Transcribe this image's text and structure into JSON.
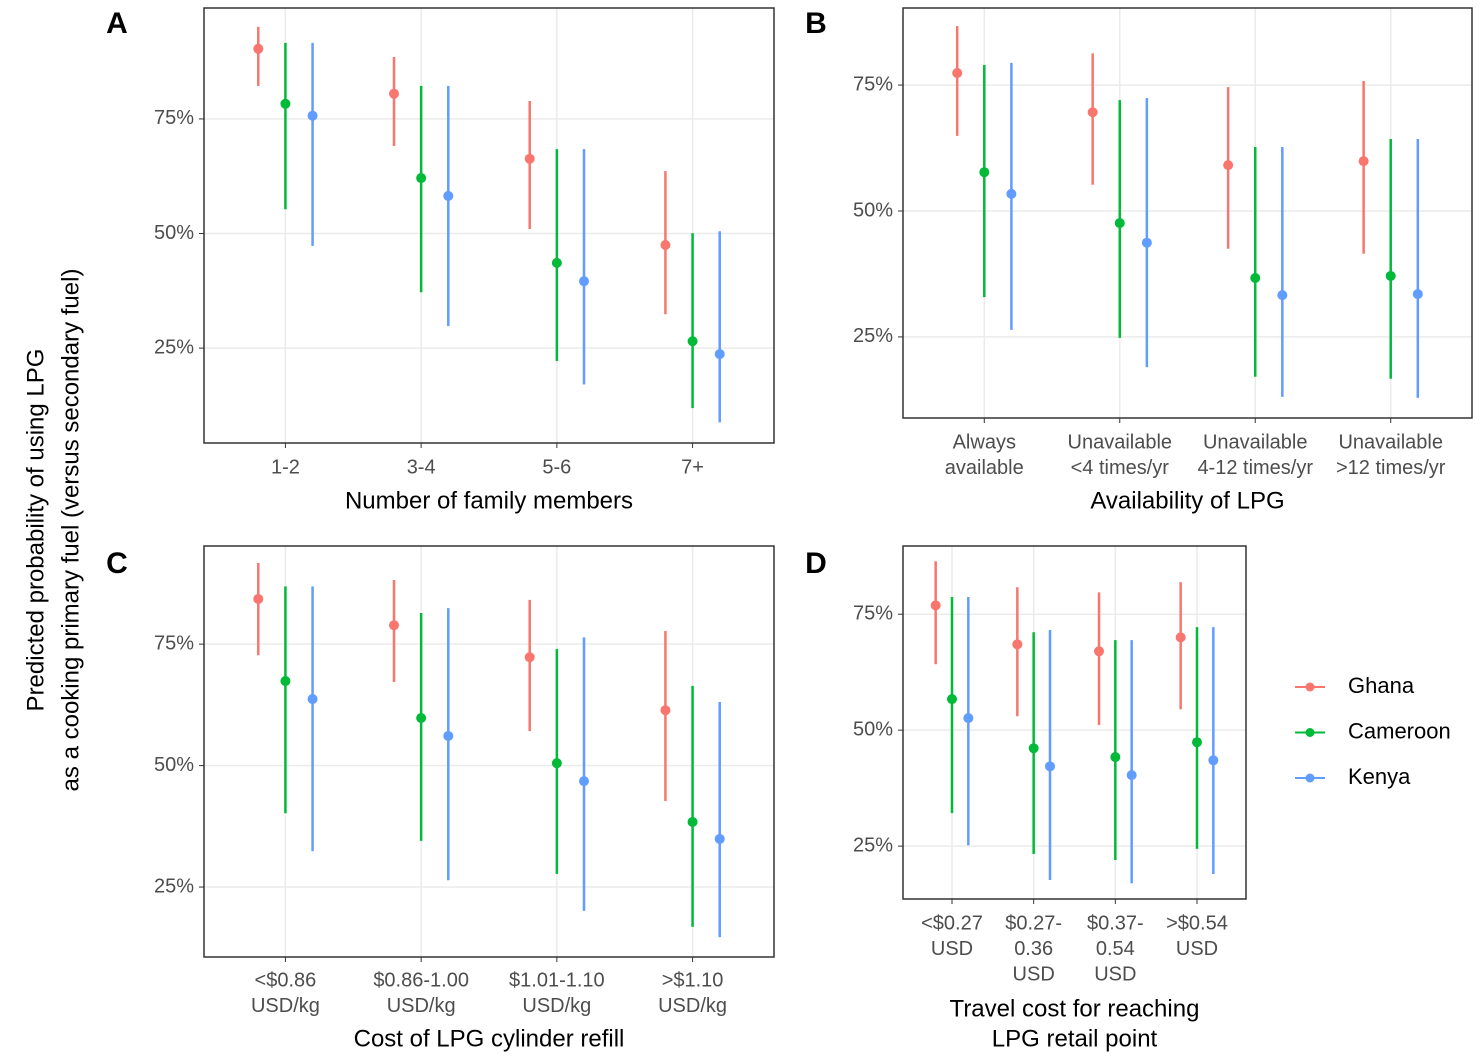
{
  "ylabel": [
    "Predicted probability of using LPG",
    "as a cooking primary fuel (versus secondary fuel)"
  ],
  "chart_data": [
    {
      "type": "pointrange",
      "panel": "A",
      "xlabel": [
        "Number of family members"
      ],
      "categories": [
        [
          "1-2"
        ],
        [
          "3-4"
        ],
        [
          "5-6"
        ],
        [
          "7+"
        ]
      ],
      "ylim": [
        4.3,
        99.2
      ],
      "yticks": [
        {
          "value": 25,
          "label": "25%"
        },
        {
          "value": 50,
          "label": "50%"
        },
        {
          "value": 75,
          "label": "75%"
        }
      ],
      "series": [
        {
          "name": "Ghana",
          "color": "#F8766D",
          "values": [
            90.3,
            80.5,
            66.3,
            47.5
          ],
          "lower": [
            82.2,
            69.1,
            51.0,
            32.4
          ],
          "upper": [
            95.1,
            88.5,
            78.9,
            63.6
          ]
        },
        {
          "name": "Cameroon",
          "color": "#00BA38",
          "values": [
            78.3,
            62.1,
            43.6,
            26.5
          ],
          "lower": [
            55.3,
            37.2,
            22.2,
            11.9
          ],
          "upper": [
            91.6,
            82.2,
            68.4,
            50.1
          ]
        },
        {
          "name": "Kenya",
          "color": "#619CFF",
          "values": [
            75.7,
            58.2,
            39.6,
            23.7
          ],
          "lower": [
            47.3,
            29.8,
            17.1,
            8.8
          ],
          "upper": [
            91.6,
            82.2,
            68.4,
            50.5
          ]
        }
      ]
    },
    {
      "type": "pointrange",
      "panel": "B",
      "xlabel": [
        "Availability of LPG"
      ],
      "categories": [
        [
          "Always",
          "available"
        ],
        [
          "Unavailable",
          "<4 times/yr"
        ],
        [
          "Unavailable",
          "4-12 times/yr"
        ],
        [
          "Unavailable",
          ">12 times/yr"
        ]
      ],
      "ylim": [
        8.9,
        90.3
      ],
      "yticks": [
        {
          "value": 25,
          "label": "25%"
        },
        {
          "value": 50,
          "label": "50%"
        },
        {
          "value": 75,
          "label": "75%"
        }
      ],
      "series": [
        {
          "name": "Ghana",
          "color": "#F8766D",
          "values": [
            77.4,
            69.6,
            59.1,
            59.9
          ],
          "lower": [
            64.9,
            55.2,
            42.5,
            41.5
          ],
          "upper": [
            86.7,
            81.3,
            74.6,
            75.8
          ]
        },
        {
          "name": "Cameroon",
          "color": "#00BA38",
          "values": [
            57.7,
            47.6,
            36.7,
            37.1
          ],
          "lower": [
            32.9,
            24.8,
            17.1,
            16.7
          ],
          "upper": [
            79.0,
            72.0,
            62.7,
            64.3
          ]
        },
        {
          "name": "Kenya",
          "color": "#619CFF",
          "values": [
            53.4,
            43.7,
            33.3,
            33.5
          ],
          "lower": [
            26.4,
            19.0,
            13.1,
            12.9
          ],
          "upper": [
            79.4,
            72.4,
            62.7,
            64.3
          ]
        }
      ]
    },
    {
      "type": "pointrange",
      "panel": "C",
      "xlabel": [
        "Cost of LPG cylinder refill"
      ],
      "categories": [
        [
          "<$0.86",
          "USD/kg"
        ],
        [
          "$0.86-1.00",
          "USD/kg"
        ],
        [
          "$1.01-1.10",
          "USD/kg"
        ],
        [
          ">$1.10",
          "USD/kg"
        ]
      ],
      "ylim": [
        10.6,
        95.2
      ],
      "yticks": [
        {
          "value": 25,
          "label": "25%"
        },
        {
          "value": 50,
          "label": "50%"
        },
        {
          "value": 75,
          "label": "75%"
        }
      ],
      "series": [
        {
          "name": "Ghana",
          "color": "#F8766D",
          "values": [
            84.3,
            78.9,
            72.3,
            61.4
          ],
          "lower": [
            72.7,
            67.2,
            57.1,
            42.7
          ],
          "upper": [
            91.7,
            88.2,
            84.1,
            77.7
          ]
        },
        {
          "name": "Cameroon",
          "color": "#00BA38",
          "values": [
            67.4,
            59.8,
            50.5,
            38.4
          ],
          "lower": [
            40.2,
            34.5,
            27.7,
            16.8
          ],
          "upper": [
            86.9,
            81.4,
            74.0,
            66.4
          ]
        },
        {
          "name": "Kenya",
          "color": "#619CFF",
          "values": [
            63.7,
            56.1,
            46.8,
            34.9
          ],
          "lower": [
            32.4,
            26.4,
            20.1,
            14.7
          ],
          "upper": [
            86.9,
            82.4,
            76.4,
            63.1
          ]
        }
      ]
    },
    {
      "type": "pointrange",
      "panel": "D",
      "xlabel": [
        "Travel cost for reaching",
        "LPG retail point"
      ],
      "categories": [
        [
          "<$0.27",
          "USD"
        ],
        [
          "$0.27-",
          "0.36",
          "USD"
        ],
        [
          "$0.37-",
          "0.54",
          "USD"
        ],
        [
          ">$0.54",
          "USD"
        ]
      ],
      "ylim": [
        13.6,
        89.7
      ],
      "yticks": [
        {
          "value": 25,
          "label": "25%"
        },
        {
          "value": 50,
          "label": "50%"
        },
        {
          "value": 75,
          "label": "75%"
        }
      ],
      "series": [
        {
          "name": "Ghana",
          "color": "#F8766D",
          "values": [
            76.9,
            68.5,
            67.0,
            70.0
          ],
          "lower": [
            64.2,
            53.0,
            51.1,
            54.5
          ],
          "upper": [
            86.4,
            80.8,
            79.7,
            81.9
          ]
        },
        {
          "name": "Cameroon",
          "color": "#00BA38",
          "values": [
            56.7,
            46.1,
            44.2,
            47.4
          ],
          "lower": [
            32.1,
            23.3,
            22.0,
            24.4
          ],
          "upper": [
            78.7,
            71.1,
            69.4,
            72.2
          ]
        },
        {
          "name": "Kenya",
          "color": "#619CFF",
          "values": [
            52.6,
            42.2,
            40.3,
            43.5
          ],
          "lower": [
            25.2,
            17.7,
            17.0,
            19.0
          ],
          "upper": [
            78.7,
            71.6,
            69.4,
            72.2
          ]
        }
      ]
    }
  ]
}
